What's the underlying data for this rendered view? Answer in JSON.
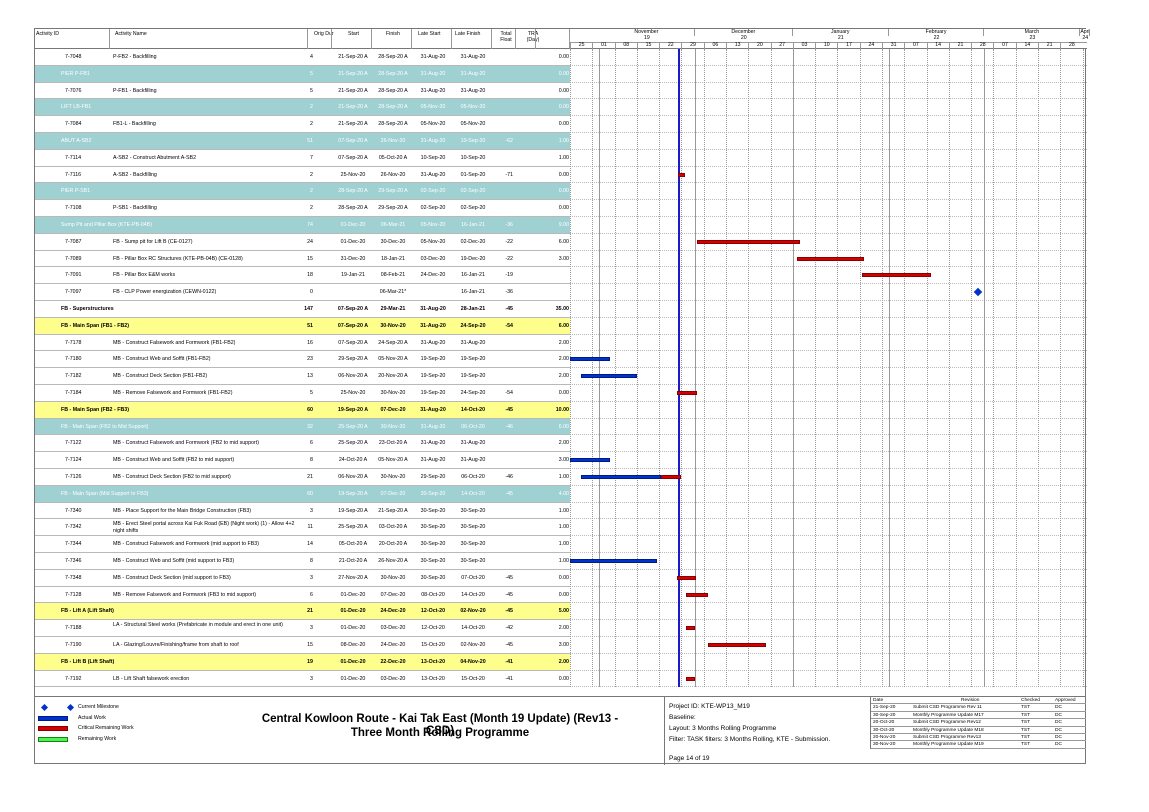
{
  "columns": {
    "activity_id": "Activity ID",
    "activity_name": "Activity Name",
    "orig_dur": "Orig Dur",
    "start": "Start",
    "finish": "Finish",
    "late_start": "Late Start",
    "late_finish": "Late Finish",
    "total_float": "Total Float",
    "tra": "TRA (Day)"
  },
  "timeline": {
    "months": [
      "November",
      "December",
      "January",
      "February",
      "March"
    ],
    "month_nums": [
      "19",
      "20",
      "21",
      "22",
      "23"
    ],
    "next_month": "April",
    "next_num": "24",
    "weeks": [
      "25",
      "01",
      "08",
      "15",
      "22",
      "29",
      "06",
      "13",
      "20",
      "27",
      "03",
      "10",
      "17",
      "24",
      "31",
      "07",
      "14",
      "21",
      "28",
      "07",
      "14",
      "21",
      "28"
    ]
  },
  "rows": [
    {
      "type": "task",
      "id": "7-7048",
      "name": "P-FB2 - Backfilling",
      "dur": "4",
      "start": "21-Sep-20 A",
      "finish": "28-Sep-20 A",
      "ls": "31-Aug-20",
      "lf": "31-Aug-20",
      "tf": "",
      "tra": "0.00"
    },
    {
      "type": "wbs-teal",
      "id": "PIER P-FB1",
      "dur": "5",
      "start": "21-Sep-20 A",
      "finish": "28-Sep-20 A",
      "ls": "31-Aug-20",
      "lf": "31-Aug-20",
      "tf": "",
      "tra": "0.00"
    },
    {
      "type": "task",
      "id": "7-7076",
      "name": "P-FB1 - Backfilling",
      "dur": "5",
      "start": "21-Sep-20 A",
      "finish": "28-Sep-20 A",
      "ls": "31-Aug-20",
      "lf": "31-Aug-20",
      "tf": "",
      "tra": "0.00"
    },
    {
      "type": "wbs-teal",
      "id": "LIFT LB-FB1",
      "dur": "2",
      "start": "21-Sep-20 A",
      "finish": "28-Sep-20 A",
      "ls": "05-Nov-20",
      "lf": "05-Nov-20",
      "tf": "",
      "tra": "0.00"
    },
    {
      "type": "task",
      "id": "7-7084",
      "name": "FB1-L - Backfilling",
      "dur": "2",
      "start": "21-Sep-20 A",
      "finish": "28-Sep-20 A",
      "ls": "05-Nov-20",
      "lf": "05-Nov-20",
      "tf": "",
      "tra": "0.00"
    },
    {
      "type": "wbs-teal",
      "id": "ABUT A-SB2",
      "dur": "51",
      "start": "07-Sep-20 A",
      "finish": "26-Nov-20",
      "ls": "31-Aug-20",
      "lf": "10-Sep-20",
      "tf": "-62",
      "tra": "1.00"
    },
    {
      "type": "task",
      "id": "7-7114",
      "name": "A-SB2 - Construct Abutment A-SB2",
      "dur": "7",
      "start": "07-Sep-20 A",
      "finish": "05-Oct-20 A",
      "ls": "10-Sep-20",
      "lf": "10-Sep-20",
      "tf": "",
      "tra": "1.00"
    },
    {
      "type": "task",
      "id": "7-7116",
      "name": "A-SB2 - Backfilling",
      "dur": "2",
      "start": "25-Nov-20",
      "finish": "26-Nov-20",
      "ls": "31-Aug-20",
      "lf": "01-Sep-20",
      "tf": "-71",
      "tra": "0.00"
    },
    {
      "type": "wbs-teal",
      "id": "PIER P-SB1",
      "dur": "2",
      "start": "28-Sep-20 A",
      "finish": "29-Sep-20 A",
      "ls": "02-Sep-20",
      "lf": "02-Sep-20",
      "tf": "",
      "tra": "0.00"
    },
    {
      "type": "task",
      "id": "7-7108",
      "name": "P-SB1 - Backfilling",
      "dur": "2",
      "start": "28-Sep-20 A",
      "finish": "29-Sep-20 A",
      "ls": "02-Sep-20",
      "lf": "02-Sep-20",
      "tf": "",
      "tra": "0.00"
    },
    {
      "type": "wbs-teal",
      "id": "Sump Pit and Pillar Box (KTE-PB-04B)",
      "dur": "74",
      "start": "01-Dec-20",
      "finish": "06-Mar-21",
      "ls": "05-Nov-20",
      "lf": "16-Jan-21",
      "tf": "-36",
      "tra": "9.00"
    },
    {
      "type": "task",
      "id": "7-7087",
      "name": "FB - Sump pit for Lift B (CE-0127)",
      "dur": "24",
      "start": "01-Dec-20",
      "finish": "30-Dec-20",
      "ls": "05-Nov-20",
      "lf": "02-Dec-20",
      "tf": "-22",
      "tra": "6.00"
    },
    {
      "type": "task",
      "id": "7-7089",
      "name": "FB - Pillar Box RC Structures (KTE-PB-04B) (CE-0128)",
      "dur": "15",
      "start": "31-Dec-20",
      "finish": "18-Jan-21",
      "ls": "03-Dec-20",
      "lf": "19-Dec-20",
      "tf": "-22",
      "tra": "3.00"
    },
    {
      "type": "task",
      "id": "7-7091",
      "name": "FB - Pillar Box E&M works",
      "dur": "18",
      "start": "19-Jan-21",
      "finish": "08-Feb-21",
      "ls": "24-Dec-20",
      "lf": "16-Jan-21",
      "tf": "-19",
      "tra": ""
    },
    {
      "type": "task",
      "id": "7-7097",
      "name": "FB - CLP Power energization (CEWN-0122)",
      "dur": "0",
      "start": "",
      "finish": "06-Mar-21*",
      "ls": "",
      "lf": "16-Jan-21",
      "tf": "-36",
      "tra": ""
    },
    {
      "type": "wbs-white",
      "id": "FB - Superstructures",
      "dur": "147",
      "start": "07-Sep-20 A",
      "finish": "29-Mar-21",
      "ls": "31-Aug-20",
      "lf": "28-Jan-21",
      "tf": "-45",
      "tra": "35.00"
    },
    {
      "type": "wbs-yellow",
      "id": "FB - Main Span (FB1 - FB2)",
      "dur": "51",
      "start": "07-Sep-20 A",
      "finish": "30-Nov-20",
      "ls": "31-Aug-20",
      "lf": "24-Sep-20",
      "tf": "-54",
      "tra": "6.00"
    },
    {
      "type": "task",
      "id": "7-7178",
      "name": "MB - Construct Falsework and Formwork (FB1-FB2)",
      "dur": "16",
      "start": "07-Sep-20 A",
      "finish": "24-Sep-20 A",
      "ls": "31-Aug-20",
      "lf": "31-Aug-20",
      "tf": "",
      "tra": "2.00"
    },
    {
      "type": "task",
      "id": "7-7180",
      "name": "MB - Construct Web and Soffit (FB1-FB2)",
      "dur": "23",
      "start": "29-Sep-20 A",
      "finish": "05-Nov-20 A",
      "ls": "19-Sep-20",
      "lf": "19-Sep-20",
      "tf": "",
      "tra": "2.00"
    },
    {
      "type": "task",
      "id": "7-7182",
      "name": "MB - Construct Deck Section (FB1-FB2)",
      "dur": "13",
      "start": "06-Nov-20 A",
      "finish": "20-Nov-20 A",
      "ls": "19-Sep-20",
      "lf": "19-Sep-20",
      "tf": "",
      "tra": "2.00"
    },
    {
      "type": "task",
      "id": "7-7184",
      "name": "MB - Remove Falsework and Formwork (FB1-FB2)",
      "dur": "5",
      "start": "25-Nov-20",
      "finish": "30-Nov-20",
      "ls": "19-Sep-20",
      "lf": "24-Sep-20",
      "tf": "-54",
      "tra": "0.00"
    },
    {
      "type": "wbs-yellow",
      "id": "FB - Main Span (FB2 - FB3)",
      "dur": "60",
      "start": "19-Sep-20 A",
      "finish": "07-Dec-20",
      "ls": "31-Aug-20",
      "lf": "14-Oct-20",
      "tf": "-45",
      "tra": "10.00"
    },
    {
      "type": "wbs-teal",
      "id": "FB - Main Span (FB2 to Mid Support)",
      "dur": "32",
      "start": "25-Sep-20 A",
      "finish": "30-Nov-20",
      "ls": "31-Aug-20",
      "lf": "06-Oct-20",
      "tf": "-46",
      "tra": "6.00"
    },
    {
      "type": "task",
      "id": "7-7122",
      "name": "MB - Construct Falsework and Formwork (FB2 to mid support)",
      "dur": "6",
      "start": "25-Sep-20 A",
      "finish": "23-Oct-20 A",
      "ls": "31-Aug-20",
      "lf": "31-Aug-20",
      "tf": "",
      "tra": "2.00"
    },
    {
      "type": "task",
      "id": "7-7124",
      "name": "MB - Construct Web and Soffit (FB2 to mid support)",
      "dur": "8",
      "start": "24-Oct-20 A",
      "finish": "05-Nov-20 A",
      "ls": "31-Aug-20",
      "lf": "31-Aug-20",
      "tf": "",
      "tra": "3.00"
    },
    {
      "type": "task",
      "id": "7-7126",
      "name": "MB - Construct Deck Section (FB2 to mid support)",
      "dur": "21",
      "start": "06-Nov-20 A",
      "finish": "30-Nov-20",
      "ls": "29-Sep-20",
      "lf": "06-Oct-20",
      "tf": "-46",
      "tra": "1.00"
    },
    {
      "type": "wbs-teal",
      "id": "FB - Main Span (Mid Support to FB3)",
      "dur": "60",
      "start": "19-Sep-20 A",
      "finish": "07-Dec-20",
      "ls": "30-Sep-20",
      "lf": "14-Oct-20",
      "tf": "-45",
      "tra": "4.00"
    },
    {
      "type": "task",
      "id": "7-7340",
      "name": "MB - Place Support for the Main Bridge Construction (FB3)",
      "dur": "3",
      "start": "19-Sep-20 A",
      "finish": "21-Sep-20 A",
      "ls": "30-Sep-20",
      "lf": "30-Sep-20",
      "tf": "",
      "tra": "1.00"
    },
    {
      "type": "task",
      "id": "7-7342",
      "name": "MB - Erect Steel portal across Kai Fuk Road (EB) (Night work) (1) - Allow 4+2 night shifts",
      "dur": "11",
      "start": "25-Sep-20 A",
      "finish": "03-Oct-20 A",
      "ls": "30-Sep-20",
      "lf": "30-Sep-20",
      "tf": "",
      "tra": "1.00"
    },
    {
      "type": "task",
      "id": "7-7344",
      "name": "MB - Construct Falsework and Formwork (mid support to FB3)",
      "dur": "14",
      "start": "05-Oct-20 A",
      "finish": "20-Oct-20 A",
      "ls": "30-Sep-20",
      "lf": "30-Sep-20",
      "tf": "",
      "tra": "1.00"
    },
    {
      "type": "task",
      "id": "7-7346",
      "name": "MB - Construct Web and Soffit (mid support to FB3)",
      "dur": "8",
      "start": "21-Oct-20 A",
      "finish": "26-Nov-20 A",
      "ls": "30-Sep-20",
      "lf": "30-Sep-20",
      "tf": "",
      "tra": "1.00"
    },
    {
      "type": "task",
      "id": "7-7348",
      "name": "MB - Construct Deck Section (mid support to FB3)",
      "dur": "3",
      "start": "27-Nov-20 A",
      "finish": "30-Nov-20",
      "ls": "30-Sep-20",
      "lf": "07-Oct-20",
      "tf": "-45",
      "tra": "0.00"
    },
    {
      "type": "task",
      "id": "7-7128",
      "name": "MB - Remove Falsework and Formwork (FB3 to mid support)",
      "dur": "6",
      "start": "01-Dec-20",
      "finish": "07-Dec-20",
      "ls": "08-Oct-20",
      "lf": "14-Oct-20",
      "tf": "-45",
      "tra": "0.00"
    },
    {
      "type": "wbs-yellow",
      "id": "FB - Lift A (Lift Shaft)",
      "dur": "21",
      "start": "01-Dec-20",
      "finish": "24-Dec-20",
      "ls": "12-Oct-20",
      "lf": "02-Nov-20",
      "tf": "-45",
      "tra": "5.00"
    },
    {
      "type": "task",
      "id": "7-7188",
      "name": "LA - Structural Steel works (Prefabricate in module and erect in one unit)",
      "dur": "3",
      "start": "01-Dec-20",
      "finish": "03-Dec-20",
      "ls": "12-Oct-20",
      "lf": "14-Oct-20",
      "tf": "-42",
      "tra": "2.00"
    },
    {
      "type": "task",
      "id": "7-7190",
      "name": "LA - Glazing/Louvre/Finishing/frame from shaft to roof",
      "dur": "15",
      "start": "08-Dec-20",
      "finish": "24-Dec-20",
      "ls": "15-Oct-20",
      "lf": "02-Nov-20",
      "tf": "-45",
      "tra": "3.00"
    },
    {
      "type": "wbs-yellow",
      "id": "FB - Lift B (Lift Shaft)",
      "dur": "19",
      "start": "01-Dec-20",
      "finish": "22-Dec-20",
      "ls": "13-Oct-20",
      "lf": "04-Nov-20",
      "tf": "-41",
      "tra": "2.00"
    },
    {
      "type": "task",
      "id": "7-7192",
      "name": "LB - Lift Shaft falsework erection",
      "dur": "3",
      "start": "01-Dec-20",
      "finish": "03-Dec-20",
      "ls": "13-Oct-20",
      "lf": "15-Oct-20",
      "tf": "-41",
      "tra": "0.00"
    }
  ],
  "bars": [
    {
      "row": 7,
      "color": "red"
    },
    {
      "row": 11,
      "color": "red"
    },
    {
      "row": 12,
      "color": "red"
    },
    {
      "row": 13,
      "color": "red"
    },
    {
      "row": 14,
      "color": "milestone"
    },
    {
      "row": 18,
      "color": "blue"
    },
    {
      "row": 19,
      "color": "blue"
    },
    {
      "row": 20,
      "color": "red"
    },
    {
      "row": 24,
      "color": "blue"
    },
    {
      "row": 25,
      "color": "blue"
    },
    {
      "row": 25,
      "color": "red"
    },
    {
      "row": 30,
      "color": "blue"
    },
    {
      "row": 31,
      "color": "red"
    },
    {
      "row": 32,
      "color": "red"
    },
    {
      "row": 34,
      "color": "red"
    },
    {
      "row": 35,
      "color": "red"
    },
    {
      "row": 37,
      "color": "red"
    }
  ],
  "legend": [
    {
      "label": "Current Milestone",
      "icon": "diamond-icon"
    },
    {
      "label": "Actual Work",
      "icon": "blue-bar-icon"
    },
    {
      "label": "Critical Remaining Work",
      "icon": "red-bar-icon"
    },
    {
      "label": "Remaining Work",
      "icon": "green-bar-icon"
    }
  ],
  "title": {
    "line1": "Central Kowloon Route - Kai Tak East (Month 19 Update) (Rev13 - CSD)",
    "line2": "Three Month Rolling Programme"
  },
  "project": {
    "id": "Project ID: KTE-WP13_M19",
    "baseline": "Baseline:",
    "layout": "Layout: 3 Months Rolling Programme",
    "filter": "Filter: TASK filters: 3 Months Rolling, KTE - Submission.",
    "page": "Page 14 of 19"
  },
  "revisions": {
    "headers": [
      "Date",
      "Revision",
      "Checked",
      "Approved"
    ],
    "rows": [
      [
        "21-Sep-20",
        "Submit CSD Programme Rev 11",
        "TST",
        "DC"
      ],
      [
        "30-Sep-20",
        "Monthly Programme Update M17",
        "TST",
        "DC"
      ],
      [
        "20-Oct-20",
        "Submit CSD Programme Rev12",
        "TST",
        "DC"
      ],
      [
        "30-Oct-20",
        "Monthly Programme Update M18",
        "TST",
        "DC"
      ],
      [
        "20-Nov-20",
        "Submit CSD Programme Rev13",
        "TST",
        "DC"
      ],
      [
        "30-Nov-20",
        "Monthly Programme Update M19",
        "TST",
        "DC"
      ]
    ]
  },
  "colors": {
    "wbs_teal": "#9fd0d2",
    "wbs_yellow": "#fefe8c",
    "critical": "#d40000",
    "actual": "#0033cc",
    "data_date": "#1a1acc"
  }
}
